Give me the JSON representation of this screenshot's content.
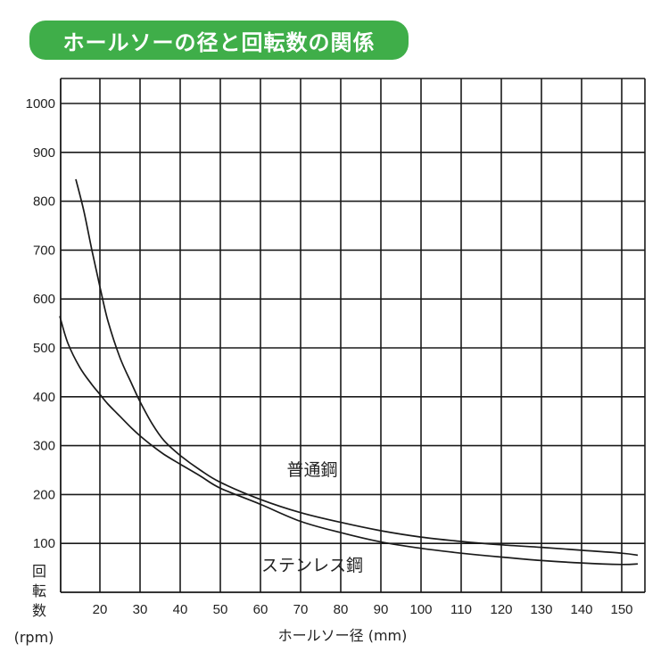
{
  "header": {
    "title": "ホールソーの径と回転数の関係"
  },
  "chart_data": {
    "type": "line",
    "title": "ホールソーの径と回転数の関係",
    "xlabel": "ホールソー径 (mm)",
    "ylabel_lines": [
      "回",
      "転",
      "数",
      "(rpm)"
    ],
    "xlim": [
      10,
      155
    ],
    "ylim": [
      0,
      1050
    ],
    "xticks": [
      20,
      30,
      40,
      50,
      60,
      70,
      80,
      90,
      100,
      110,
      120,
      130,
      140,
      150
    ],
    "yticks": [
      100,
      200,
      300,
      400,
      500,
      600,
      700,
      800,
      900,
      1000
    ],
    "grid": true,
    "colors": {
      "title_bg": "#3fae49",
      "grid": "#1a1a1a",
      "line": "#1a1a1a"
    },
    "series": [
      {
        "name": "普通鋼",
        "x": [
          14,
          16,
          18,
          20,
          22,
          25,
          28,
          30,
          33,
          36,
          40,
          45,
          50,
          60,
          70,
          80,
          90,
          100,
          110,
          120,
          130,
          140,
          150,
          154
        ],
        "y": [
          845,
          780,
          700,
          625,
          555,
          480,
          425,
          390,
          345,
          310,
          280,
          250,
          225,
          190,
          163,
          143,
          126,
          113,
          104,
          97,
          92,
          86,
          80,
          76
        ]
      },
      {
        "name": "ステンレス鋼",
        "x": [
          10,
          12,
          15,
          18,
          20,
          22,
          25,
          28,
          30,
          33,
          36,
          40,
          45,
          50,
          60,
          70,
          80,
          90,
          100,
          110,
          120,
          130,
          140,
          150,
          154
        ],
        "y": [
          565,
          510,
          460,
          425,
          405,
          385,
          360,
          335,
          320,
          300,
          282,
          262,
          238,
          213,
          180,
          145,
          122,
          103,
          90,
          80,
          72,
          65,
          60,
          57,
          58
        ]
      }
    ]
  }
}
